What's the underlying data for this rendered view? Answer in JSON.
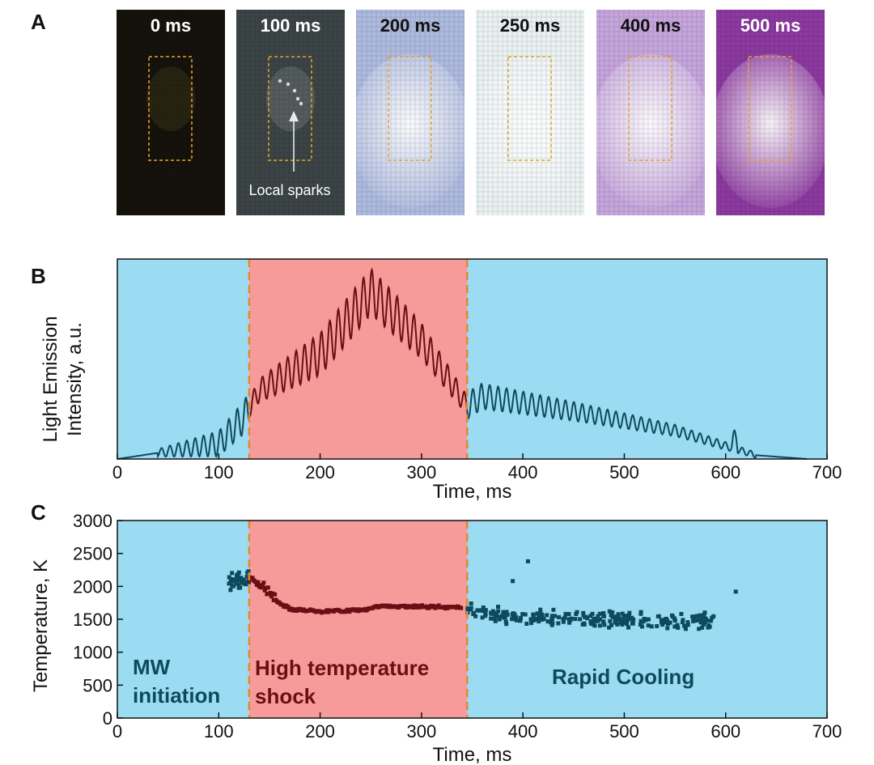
{
  "panel_labels": {
    "a": "A",
    "b": "B",
    "c": "C"
  },
  "colors": {
    "bg_blue": "#9bdcf3",
    "bg_red": "#f79a9a",
    "trace_dark": "#0e4a5e",
    "trace_shock": "#6b0f14",
    "boundary": "#e08a2c",
    "roi": "#e6a12a"
  },
  "frames": [
    {
      "time": "0 ms",
      "bg": "#15120c",
      "glow": "#3a3418",
      "text_color": "#ffffff"
    },
    {
      "time": "100 ms",
      "bg": "#3b4446",
      "glow": "#6d7374",
      "text_color": "#ffffff"
    },
    {
      "time": "200 ms",
      "bg": "#aebbe0",
      "glow": "#f4f8fb",
      "text_color": "#111111"
    },
    {
      "time": "250 ms",
      "bg": "#eaf2f3",
      "glow": "#f7fbfb",
      "text_color": "#111111"
    },
    {
      "time": "400 ms",
      "bg": "#c6a6dd",
      "glow": "#f7f4fb",
      "text_color": "#111111"
    },
    {
      "time": "500 ms",
      "bg": "#8d3aa0",
      "glow": "#ffffff",
      "text_color": "#ffffff"
    }
  ],
  "annotation": "Local sparks",
  "regions": {
    "initiation": "MW initiation",
    "initiation_line1": "MW",
    "initiation_line2": "initiation",
    "shock": "High temperature shock",
    "shock_line1": "High temperature",
    "shock_line2": "shock",
    "cooling": "Rapid Cooling"
  },
  "chart_data": [
    {
      "type": "line",
      "panel": "B",
      "xlabel": "Time, ms",
      "ylabel_line1": "Light Emission",
      "ylabel_line2": "Intensity, a.u.",
      "xlim": [
        0,
        700
      ],
      "ylim": [
        0,
        1.05
      ],
      "xticks": [
        0,
        100,
        200,
        300,
        400,
        500,
        600,
        700
      ],
      "shaded_regions": [
        {
          "from": 0,
          "to": 130,
          "color": "blue"
        },
        {
          "from": 130,
          "to": 345,
          "color": "red"
        },
        {
          "from": 345,
          "to": 700,
          "color": "blue"
        }
      ],
      "boundaries": [
        130,
        345
      ],
      "data_range": [
        0,
        680
      ],
      "description_points": [
        {
          "x": 0,
          "y": 0.0
        },
        {
          "x": 100,
          "y": 0.08
        },
        {
          "x": 125,
          "y": 0.22
        },
        {
          "x": 140,
          "y": 0.36
        },
        {
          "x": 200,
          "y": 0.55
        },
        {
          "x": 250,
          "y": 0.88
        },
        {
          "x": 300,
          "y": 0.62
        },
        {
          "x": 345,
          "y": 0.28
        },
        {
          "x": 360,
          "y": 0.33
        },
        {
          "x": 450,
          "y": 0.25
        },
        {
          "x": 550,
          "y": 0.15
        },
        {
          "x": 630,
          "y": 0.02
        },
        {
          "x": 680,
          "y": 0.0
        }
      ]
    },
    {
      "type": "scatter",
      "panel": "C",
      "xlabel": "Time, ms",
      "ylabel": "Temperature, K",
      "xlim": [
        0,
        700
      ],
      "ylim": [
        0,
        3000
      ],
      "xticks": [
        0,
        100,
        200,
        300,
        400,
        500,
        600,
        700
      ],
      "yticks": [
        0,
        500,
        1000,
        1500,
        2000,
        2500,
        3000
      ],
      "boundaries": [
        130,
        345
      ],
      "series": [
        {
          "name": "initiation",
          "x_range": [
            110,
            130
          ],
          "mean": 2100,
          "spread": 220
        },
        {
          "name": "shock",
          "points": [
            {
              "x": 130,
              "y": 2150
            },
            {
              "x": 140,
              "y": 2050
            },
            {
              "x": 150,
              "y": 1900
            },
            {
              "x": 160,
              "y": 1750
            },
            {
              "x": 170,
              "y": 1660
            },
            {
              "x": 200,
              "y": 1620
            },
            {
              "x": 240,
              "y": 1640
            },
            {
              "x": 260,
              "y": 1700
            },
            {
              "x": 300,
              "y": 1690
            },
            {
              "x": 340,
              "y": 1680
            }
          ]
        },
        {
          "name": "cooling",
          "x_range": [
            345,
            590
          ],
          "mean": 1550,
          "spread": 200
        },
        {
          "name": "outliers",
          "points": [
            {
              "x": 405,
              "y": 2380
            },
            {
              "x": 390,
              "y": 2080
            },
            {
              "x": 610,
              "y": 1920
            }
          ]
        }
      ]
    }
  ]
}
